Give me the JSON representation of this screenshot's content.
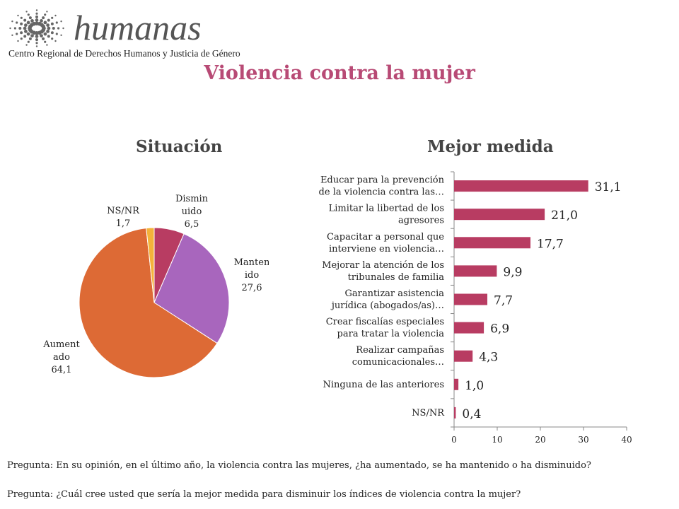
{
  "logo": {
    "name": "humanas",
    "subtitle": "Centro Regional de Derechos Humanos y Justicia de Género"
  },
  "title": "Violencia contra la mujer",
  "colors": {
    "title": "#b84a75",
    "bar": "#b83c62",
    "pie_disminuido": "#b83c62",
    "pie_mantenido": "#a866bd",
    "pie_aumentado": "#dd6a35",
    "pie_nsnr": "#f4b23a"
  },
  "chart_data": [
    {
      "type": "pie",
      "title": "Situación",
      "slices": [
        {
          "label": "Dismin uido",
          "label_lines": [
            "Dismin",
            "uido"
          ],
          "value": 6.5,
          "value_label": "6,5",
          "color": "#b83c62"
        },
        {
          "label": "Manten ido",
          "label_lines": [
            "Manten",
            "ido"
          ],
          "value": 27.6,
          "value_label": "27,6",
          "color": "#a866bd"
        },
        {
          "label": "Aument ado",
          "label_lines": [
            "Aument",
            "ado"
          ],
          "value": 64.1,
          "value_label": "64,1",
          "color": "#dd6a35"
        },
        {
          "label": "NS/NR",
          "label_lines": [
            "NS/NR"
          ],
          "value": 1.7,
          "value_label": "1,7",
          "color": "#f4b23a"
        }
      ]
    },
    {
      "type": "bar",
      "orientation": "horizontal",
      "title": "Mejor medida",
      "categories": [
        [
          "Educar para la prevención",
          "de la violencia contra las…"
        ],
        [
          "Limitar la libertad de los",
          "agresores"
        ],
        [
          "Capacitar a personal que",
          "interviene en violencia…"
        ],
        [
          "Mejorar la atención de los",
          "tribunales de familia"
        ],
        [
          "Garantizar asistencia",
          "jurídica (abogados/as)…"
        ],
        [
          "Crear fiscalías especiales",
          "para tratar la violencia"
        ],
        [
          "Realizar campañas",
          "comunicacionales…"
        ],
        [
          "Ninguna de las anteriores"
        ],
        [
          "NS/NR"
        ]
      ],
      "values": [
        31.1,
        21.0,
        17.7,
        9.9,
        7.7,
        6.9,
        4.3,
        1.0,
        0.4
      ],
      "value_labels": [
        "31,1",
        "21,0",
        "17,7",
        "9,9",
        "7,7",
        "6,9",
        "4,3",
        "1,0",
        "0,4"
      ],
      "xlim": [
        0,
        40
      ],
      "xticks": [
        "0",
        "10",
        "20",
        "30",
        "40"
      ],
      "color": "#b83c62",
      "grid": false
    }
  ],
  "questions": [
    "Pregunta: En su opinión, en el último año, la violencia contra las mujeres, ¿ha aumentado, se ha mantenido o ha disminuido?",
    "Pregunta: ¿Cuál cree usted que sería la mejor medida para disminuir los índices de violencia contra la mujer?"
  ]
}
